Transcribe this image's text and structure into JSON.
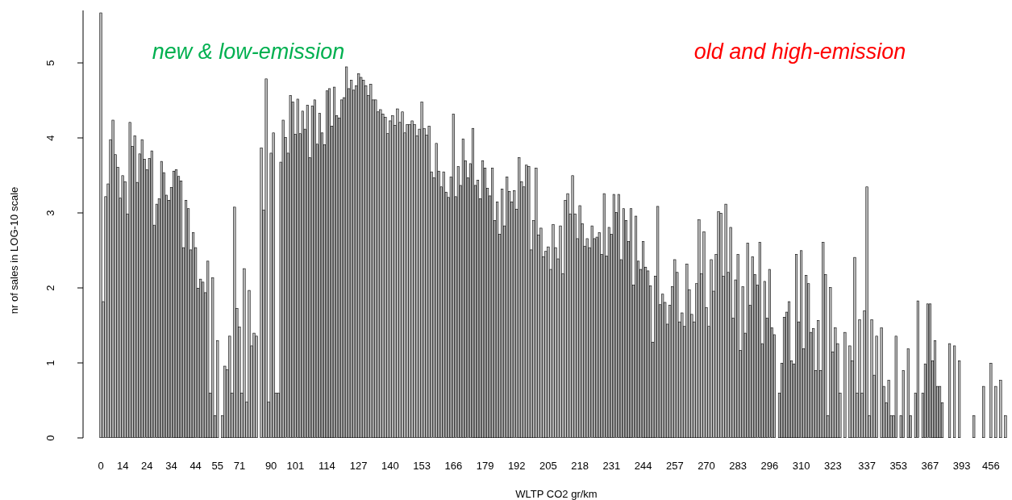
{
  "chart_data": {
    "type": "bar",
    "xlabel": "WLTP CO2 gr/km",
    "ylabel": "nr of sales in LOG-10 scale",
    "annotations": [
      "new & low-emission",
      "old and high-emission"
    ],
    "color": "#bebebe",
    "ylim": [
      0,
      5.7
    ],
    "yticks": [
      0,
      1,
      2,
      3,
      4,
      5
    ],
    "categories": [
      "0",
      null,
      null,
      null,
      null,
      null,
      null,
      null,
      null,
      "14",
      null,
      null,
      null,
      null,
      null,
      null,
      null,
      null,
      null,
      "24",
      null,
      null,
      null,
      null,
      null,
      null,
      null,
      null,
      null,
      "34",
      null,
      null,
      null,
      null,
      null,
      null,
      null,
      null,
      null,
      "44",
      null,
      null,
      null,
      null,
      null,
      null,
      null,
      null,
      "55",
      null,
      null,
      null,
      null,
      null,
      null,
      null,
      null,
      "71",
      null,
      null,
      null,
      null,
      null,
      null,
      null,
      null,
      null,
      null,
      null,
      null,
      "90",
      null,
      null,
      null,
      null,
      null,
      null,
      null,
      null,
      null,
      "101",
      null,
      null,
      null,
      null,
      null,
      null,
      null,
      null,
      null,
      null,
      null,
      null,
      "114",
      null,
      null,
      null,
      null,
      null,
      null,
      null,
      null,
      null,
      null,
      null,
      null,
      "127",
      null,
      null,
      null,
      null,
      null,
      null,
      null,
      null,
      null,
      null,
      null,
      null,
      "140",
      null,
      null,
      null,
      null,
      null,
      null,
      null,
      null,
      null,
      null,
      null,
      null,
      "153",
      null,
      null,
      null,
      null,
      null,
      null,
      null,
      null,
      null,
      null,
      null,
      null,
      "166",
      null,
      null,
      null,
      null,
      null,
      null,
      null,
      null,
      null,
      null,
      null,
      null,
      "179",
      null,
      null,
      null,
      null,
      null,
      null,
      null,
      null,
      null,
      null,
      null,
      null,
      "192",
      null,
      null,
      null,
      null,
      null,
      null,
      null,
      null,
      null,
      null,
      null,
      null,
      "205",
      null,
      null,
      null,
      null,
      null,
      null,
      null,
      null,
      null,
      null,
      null,
      null,
      "218",
      null,
      null,
      null,
      null,
      null,
      null,
      null,
      null,
      null,
      null,
      null,
      null,
      "231",
      null,
      null,
      null,
      null,
      null,
      null,
      null,
      null,
      null,
      null,
      null,
      null,
      "244",
      null,
      null,
      null,
      null,
      null,
      null,
      null,
      null,
      null,
      null,
      null,
      null,
      "257",
      null,
      null,
      null,
      null,
      null,
      null,
      null,
      null,
      null,
      null,
      null,
      null,
      "270",
      null,
      null,
      null,
      null,
      null,
      null,
      null,
      null,
      null,
      null,
      null,
      null,
      "283",
      null,
      null,
      null,
      null,
      null,
      null,
      null,
      null,
      null,
      null,
      null,
      null,
      "296",
      null,
      null,
      null,
      null,
      null,
      null,
      null,
      null,
      null,
      null,
      null,
      null,
      "310",
      null,
      null,
      null,
      null,
      null,
      null,
      null,
      null,
      null,
      null,
      null,
      null,
      "323",
      null,
      null,
      null,
      null,
      null,
      null,
      null,
      null,
      null,
      null,
      null,
      null,
      null,
      "337",
      null,
      null,
      null,
      null,
      null,
      null,
      null,
      null,
      null,
      null,
      null,
      null,
      "353",
      null,
      null,
      null,
      null,
      null,
      null,
      null,
      null,
      null,
      null,
      null,
      null,
      "367",
      null,
      null,
      null,
      null,
      null,
      null,
      null,
      null,
      null,
      null,
      null,
      null,
      "393",
      null,
      null,
      null,
      null,
      null,
      null,
      null,
      null,
      null,
      null,
      null,
      "456",
      null,
      null,
      null,
      null,
      null,
      null
    ],
    "values": [
      5.67,
      1.82,
      3.22,
      3.39,
      3.98,
      4.24,
      3.78,
      3.61,
      3.2,
      3.5,
      3.42,
      2.99,
      4.21,
      3.89,
      4.03,
      3.41,
      3.79,
      3.98,
      3.72,
      3.58,
      3.73,
      3.83,
      2.84,
      3.12,
      3.19,
      3.69,
      3.54,
      3.24,
      3.17,
      3.34,
      3.56,
      3.58,
      3.49,
      3.43,
      2.54,
      3.17,
      3.06,
      2.51,
      2.74,
      2.54,
      2.0,
      2.12,
      2.08,
      1.94,
      2.36,
      0.6,
      2.14,
      0.3,
      1.3,
      0,
      0.3,
      0.96,
      0.91,
      1.36,
      0.6,
      3.08,
      1.73,
      1.48,
      0.6,
      2.26,
      0.48,
      1.97,
      1.23,
      1.4,
      1.36,
      0,
      3.87,
      3.04,
      4.79,
      0.48,
      3.8,
      4.07,
      0.6,
      0.6,
      3.68,
      4.24,
      4.01,
      3.8,
      4.57,
      4.48,
      4.05,
      4.52,
      4.06,
      4.36,
      4.12,
      4.44,
      3.74,
      4.43,
      4.51,
      3.92,
      4.33,
      4.07,
      3.91,
      4.63,
      4.66,
      4.16,
      4.68,
      4.3,
      4.27,
      4.51,
      4.54,
      4.95,
      4.66,
      4.77,
      4.64,
      4.7,
      4.86,
      4.81,
      4.77,
      4.7,
      4.57,
      4.72,
      4.51,
      4.51,
      4.35,
      4.38,
      4.32,
      4.28,
      4.06,
      4.23,
      4.3,
      4.17,
      4.39,
      4.21,
      4.35,
      4.07,
      4.18,
      4.18,
      4.23,
      4.18,
      4.03,
      4.12,
      4.48,
      4.13,
      4.04,
      4.16,
      3.55,
      3.47,
      3.93,
      3.56,
      3.35,
      3.55,
      3.28,
      3.21,
      3.48,
      4.32,
      3.22,
      3.62,
      3.37,
      3.99,
      3.7,
      3.47,
      3.66,
      4.13,
      3.37,
      3.44,
      3.19,
      3.7,
      3.6,
      3.33,
      3.23,
      3.6,
      2.9,
      3.15,
      2.72,
      3.32,
      2.83,
      3.48,
      3.29,
      3.15,
      3.3,
      3.05,
      3.74,
      3.42,
      3.35,
      3.64,
      3.62,
      2.51,
      2.9,
      3.6,
      2.71,
      2.8,
      2.42,
      2.49,
      2.55,
      2.25,
      2.85,
      2.54,
      2.39,
      2.83,
      2.19,
      3.17,
      3.26,
      2.99,
      3.5,
      2.99,
      2.66,
      3.1,
      2.86,
      2.56,
      2.66,
      2.54,
      2.83,
      2.66,
      2.68,
      2.74,
      2.45,
      3.26,
      2.43,
      2.81,
      2.72,
      3.25,
      3.01,
      3.25,
      2.38,
      3.06,
      2.9,
      2.62,
      3.06,
      2.04,
      2.96,
      2.36,
      2.25,
      2.62,
      2.28,
      2.23,
      2.03,
      1.28,
      2.16,
      3.09,
      1.78,
      1.92,
      1.81,
      1.52,
      1.77,
      2.02,
      2.38,
      2.21,
      1.55,
      1.67,
      1.49,
      2.32,
      1.98,
      1.65,
      1.55,
      2.06,
      2.91,
      2.19,
      2.75,
      1.74,
      1.49,
      2.38,
      1.96,
      2.45,
      3.02,
      3.0,
      2.16,
      3.12,
      2.21,
      2.81,
      1.6,
      2.11,
      2.45,
      1.17,
      2.02,
      1.4,
      2.6,
      1.77,
      2.42,
      2.18,
      2.04,
      2.61,
      1.26,
      2.09,
      1.6,
      2.25,
      1.47,
      1.38,
      0,
      0.6,
      1.0,
      1.61,
      1.68,
      1.82,
      1.03,
      0.99,
      2.45,
      1.55,
      2.5,
      1.19,
      2.17,
      2.06,
      1.41,
      1.46,
      0.9,
      1.57,
      0.9,
      2.61,
      2.18,
      0.3,
      2.01,
      1.15,
      1.47,
      1.26,
      0.6,
      0,
      1.41,
      0,
      1.23,
      1.03,
      2.41,
      0.6,
      1.58,
      0.6,
      1.7,
      3.35,
      0.3,
      1.58,
      0.84,
      1.36,
      0,
      1.47,
      0.69,
      0.47,
      0.77,
      0.3,
      0.3,
      1.36,
      0,
      0.3,
      0.9,
      0,
      1.19,
      0.3,
      0,
      0.6,
      1.83,
      0,
      0.6,
      0.99,
      1.79,
      1.79,
      1.03,
      1.3,
      0.69,
      0.69,
      0.47,
      0,
      0,
      1.26,
      0,
      1.23,
      0,
      1.03,
      0,
      0,
      0,
      0,
      0,
      0.3,
      0,
      0,
      0,
      0.69,
      0,
      0,
      1.0,
      0,
      0.69,
      0,
      0.77,
      0,
      0.3
    ]
  }
}
